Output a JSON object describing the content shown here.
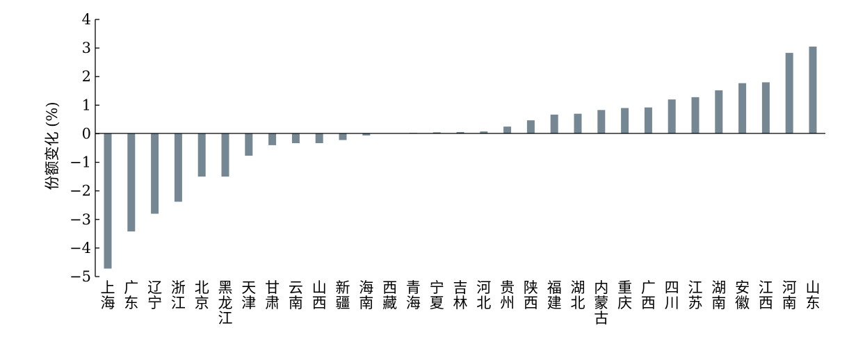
{
  "chart_data": {
    "type": "bar",
    "title": "",
    "xlabel": "",
    "ylabel": "份额变化 (%)",
    "ylim": [
      -5,
      4
    ],
    "yticks": [
      4,
      3,
      2,
      1,
      0,
      -1,
      -2,
      -3,
      -4,
      -5
    ],
    "ytick_labels": [
      "4",
      "3",
      "2",
      "1",
      "0",
      "−1",
      "−2",
      "−3",
      "−4",
      "−5"
    ],
    "grid": false,
    "legend": "none",
    "bar_color": "#748792",
    "categories": [
      "上海",
      "广东",
      "辽宁",
      "浙江",
      "北京",
      "黑龙江",
      "天津",
      "甘肃",
      "云南",
      "山西",
      "新疆",
      "海南",
      "西藏",
      "青海",
      "宁夏",
      "吉林",
      "河北",
      "贵州",
      "陕西",
      "福建",
      "湖北",
      "内蒙古",
      "重庆",
      "广西",
      "四川",
      "江苏",
      "湖南",
      "安徽",
      "江西",
      "河南",
      "山东"
    ],
    "values": [
      -4.72,
      -3.42,
      -2.8,
      -2.38,
      -1.5,
      -1.5,
      -0.77,
      -0.4,
      -0.33,
      -0.33,
      -0.22,
      -0.06,
      0.0,
      0.03,
      0.05,
      0.06,
      0.08,
      0.25,
      0.47,
      0.67,
      0.7,
      0.83,
      0.9,
      0.92,
      1.2,
      1.28,
      1.52,
      1.77,
      1.8,
      2.83,
      3.05
    ]
  }
}
